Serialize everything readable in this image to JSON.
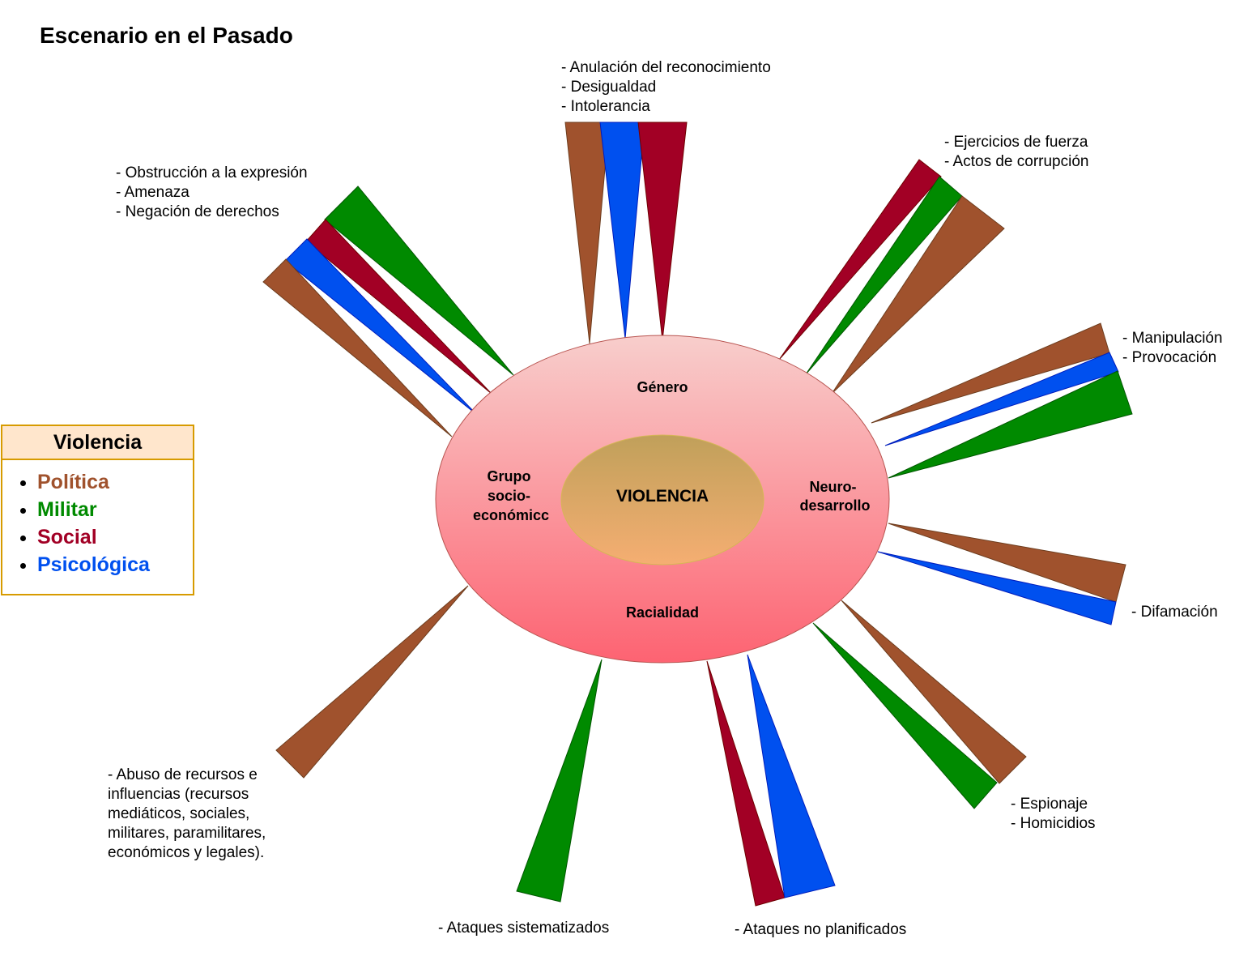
{
  "title": "Escenario en el Pasado",
  "colors": {
    "politica": "#a0522d",
    "militar": "#008a00",
    "social": "#a20025",
    "psicologica": "#0050ef",
    "outer_top": "#f8cecc",
    "outer_bottom": "#fd6372",
    "inner_top": "#c0a05a",
    "inner_bottom": "#f5ae72"
  },
  "center": {
    "label": "VIOLENCIA"
  },
  "factors": {
    "genero": "Género",
    "grupo": [
      "Grupo",
      "socio-",
      "económicc"
    ],
    "neuro": [
      "Neuro-",
      "desarrollo"
    ],
    "racialidad": "Racialidad"
  },
  "legend": {
    "title": "Violencia",
    "items": [
      {
        "label": "Política",
        "color": "#a0522d"
      },
      {
        "label": "Militar",
        "color": "#008a00"
      },
      {
        "label": "Social",
        "color": "#a20025"
      },
      {
        "label": "Psicológica",
        "color": "#0050ef"
      }
    ]
  },
  "annotations": {
    "top": [
      "- Anulación del reconocimiento",
      "- Desigualdad",
      "- Intolerancia"
    ],
    "upper_left": [
      "- Obstrucción a la expresión",
      "- Amenaza",
      "- Negación de derechos"
    ],
    "upper_right": [
      "- Ejercicios de fuerza",
      "- Actos de corrupción"
    ],
    "right_top": [
      "- Manipulación",
      "- Provocación"
    ],
    "right_bottom": [
      "- Difamación"
    ],
    "bottom_right": [
      "- Espionaje",
      "- Homicidios"
    ],
    "bottom_center": [
      "- Ataques no planificados"
    ],
    "bottom_left_center": [
      "- Ataques sistematizados"
    ],
    "lower_left": [
      "- Abuso de recursos e influencias (recursos mediáticos, sociales, militares, paramilitares, económicos y legales)."
    ]
  }
}
